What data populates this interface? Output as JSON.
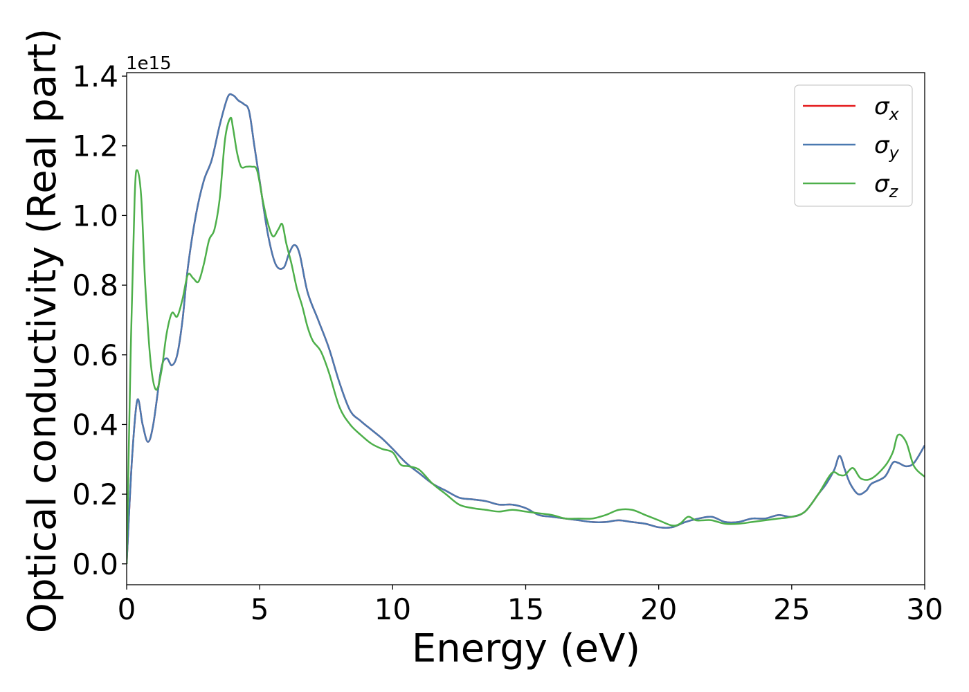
{
  "chart_data": {
    "type": "line",
    "title": "",
    "xlabel": "Energy (eV)",
    "ylabel": "Optical conductivity (Real part)",
    "y_offset_label": "1e15",
    "y_scale_factor": 1000000000000000.0,
    "xlim": [
      0,
      30
    ],
    "ylim": [
      -0.06,
      1.41
    ],
    "xticks": [
      0,
      5,
      10,
      15,
      20,
      25,
      30
    ],
    "xtick_labels": [
      "0",
      "5",
      "10",
      "15",
      "20",
      "25",
      "30"
    ],
    "yticks": [
      0.0,
      0.2,
      0.4,
      0.6,
      0.8,
      1.0,
      1.2,
      1.4
    ],
    "ytick_labels": [
      "0.0",
      "0.2",
      "0.4",
      "0.6",
      "0.8",
      "1.0",
      "1.2",
      "1.4"
    ],
    "grid": false,
    "legend_position": "top-right",
    "series": [
      {
        "name": "σx",
        "legend_base": "σ",
        "legend_sub": "x",
        "color": "#e41a1c",
        "x": [
          0,
          0.2,
          0.4,
          0.6,
          0.8,
          1.0,
          1.3,
          1.5,
          1.7,
          1.9,
          2.1,
          2.3,
          2.6,
          2.9,
          3.2,
          3.5,
          3.8,
          4.0,
          4.2,
          4.4,
          4.6,
          4.8,
          5.0,
          5.3,
          5.6,
          5.9,
          6.1,
          6.3,
          6.5,
          6.8,
          7.2,
          7.6,
          8.0,
          8.4,
          8.8,
          9.2,
          9.6,
          10.0,
          10.5,
          11.0,
          11.5,
          12.0,
          12.5,
          13.0,
          13.5,
          14.0,
          14.5,
          15.0,
          15.5,
          16.0,
          16.5,
          17.0,
          17.5,
          18.0,
          18.5,
          19.0,
          19.5,
          20.0,
          20.5,
          21.0,
          21.5,
          22.0,
          22.5,
          23.0,
          23.5,
          24.0,
          24.5,
          25.0,
          25.5,
          26.0,
          26.3,
          26.6,
          26.8,
          27.0,
          27.2,
          27.5,
          27.8,
          28.0,
          28.5,
          28.8,
          29.0,
          29.3,
          29.6,
          30.0
        ],
        "values": [
          0.0,
          0.3,
          0.47,
          0.4,
          0.35,
          0.4,
          0.56,
          0.59,
          0.57,
          0.6,
          0.7,
          0.85,
          1.0,
          1.1,
          1.16,
          1.26,
          1.34,
          1.345,
          1.33,
          1.32,
          1.3,
          1.2,
          1.1,
          0.95,
          0.86,
          0.85,
          0.89,
          0.915,
          0.89,
          0.78,
          0.7,
          0.62,
          0.52,
          0.44,
          0.41,
          0.385,
          0.36,
          0.33,
          0.29,
          0.26,
          0.23,
          0.21,
          0.19,
          0.185,
          0.18,
          0.17,
          0.17,
          0.16,
          0.14,
          0.135,
          0.13,
          0.125,
          0.12,
          0.12,
          0.125,
          0.12,
          0.115,
          0.105,
          0.105,
          0.12,
          0.13,
          0.135,
          0.12,
          0.12,
          0.13,
          0.13,
          0.14,
          0.135,
          0.15,
          0.2,
          0.23,
          0.27,
          0.31,
          0.27,
          0.23,
          0.2,
          0.21,
          0.23,
          0.25,
          0.29,
          0.29,
          0.28,
          0.29,
          0.34
        ]
      },
      {
        "name": "σy",
        "legend_base": "σ",
        "legend_sub": "y",
        "color": "#4a79b0",
        "x": [
          0,
          0.2,
          0.4,
          0.6,
          0.8,
          1.0,
          1.3,
          1.5,
          1.7,
          1.9,
          2.1,
          2.3,
          2.6,
          2.9,
          3.2,
          3.5,
          3.8,
          4.0,
          4.2,
          4.4,
          4.6,
          4.8,
          5.0,
          5.3,
          5.6,
          5.9,
          6.1,
          6.3,
          6.5,
          6.8,
          7.2,
          7.6,
          8.0,
          8.4,
          8.8,
          9.2,
          9.6,
          10.0,
          10.5,
          11.0,
          11.5,
          12.0,
          12.5,
          13.0,
          13.5,
          14.0,
          14.5,
          15.0,
          15.5,
          16.0,
          16.5,
          17.0,
          17.5,
          18.0,
          18.5,
          19.0,
          19.5,
          20.0,
          20.5,
          21.0,
          21.5,
          22.0,
          22.5,
          23.0,
          23.5,
          24.0,
          24.5,
          25.0,
          25.5,
          26.0,
          26.3,
          26.6,
          26.8,
          27.0,
          27.2,
          27.5,
          27.8,
          28.0,
          28.5,
          28.8,
          29.0,
          29.3,
          29.6,
          30.0
        ],
        "values": [
          0.0,
          0.3,
          0.47,
          0.4,
          0.35,
          0.4,
          0.56,
          0.59,
          0.57,
          0.6,
          0.7,
          0.85,
          1.0,
          1.1,
          1.16,
          1.26,
          1.34,
          1.345,
          1.33,
          1.32,
          1.3,
          1.2,
          1.1,
          0.95,
          0.86,
          0.85,
          0.89,
          0.915,
          0.89,
          0.78,
          0.7,
          0.62,
          0.52,
          0.44,
          0.41,
          0.385,
          0.36,
          0.33,
          0.29,
          0.26,
          0.23,
          0.21,
          0.19,
          0.185,
          0.18,
          0.17,
          0.17,
          0.16,
          0.14,
          0.135,
          0.13,
          0.125,
          0.12,
          0.12,
          0.125,
          0.12,
          0.115,
          0.105,
          0.105,
          0.12,
          0.13,
          0.135,
          0.12,
          0.12,
          0.13,
          0.13,
          0.14,
          0.135,
          0.15,
          0.2,
          0.23,
          0.27,
          0.31,
          0.27,
          0.23,
          0.2,
          0.21,
          0.23,
          0.25,
          0.29,
          0.29,
          0.28,
          0.29,
          0.34
        ]
      },
      {
        "name": "σz",
        "legend_base": "σ",
        "legend_sub": "z",
        "color": "#4daf4a",
        "x": [
          0,
          0.15,
          0.3,
          0.4,
          0.55,
          0.7,
          0.9,
          1.1,
          1.3,
          1.5,
          1.7,
          1.9,
          2.1,
          2.3,
          2.5,
          2.7,
          2.9,
          3.1,
          3.3,
          3.5,
          3.7,
          3.9,
          4.0,
          4.15,
          4.3,
          4.5,
          4.7,
          4.9,
          5.1,
          5.3,
          5.5,
          5.7,
          5.85,
          6.0,
          6.2,
          6.4,
          6.6,
          6.8,
          7.0,
          7.3,
          7.6,
          8.0,
          8.4,
          8.8,
          9.2,
          9.6,
          10.0,
          10.3,
          10.6,
          11.0,
          11.5,
          12.0,
          12.5,
          13.0,
          13.5,
          14.0,
          14.5,
          15.0,
          15.5,
          16.0,
          16.5,
          17.0,
          17.5,
          18.0,
          18.5,
          19.0,
          19.5,
          20.0,
          20.5,
          20.8,
          21.1,
          21.4,
          21.7,
          22.0,
          22.5,
          23.0,
          23.5,
          24.0,
          24.5,
          25.0,
          25.5,
          26.0,
          26.5,
          26.8,
          27.0,
          27.3,
          27.6,
          28.0,
          28.5,
          28.8,
          29.0,
          29.3,
          29.6,
          30.0
        ],
        "values": [
          0.0,
          0.6,
          1.05,
          1.13,
          1.05,
          0.8,
          0.58,
          0.5,
          0.55,
          0.66,
          0.72,
          0.71,
          0.76,
          0.83,
          0.82,
          0.81,
          0.86,
          0.93,
          0.96,
          1.05,
          1.22,
          1.28,
          1.25,
          1.18,
          1.14,
          1.14,
          1.14,
          1.13,
          1.05,
          0.98,
          0.94,
          0.96,
          0.975,
          0.92,
          0.86,
          0.79,
          0.74,
          0.68,
          0.64,
          0.61,
          0.55,
          0.45,
          0.4,
          0.37,
          0.345,
          0.33,
          0.32,
          0.285,
          0.28,
          0.27,
          0.23,
          0.2,
          0.17,
          0.16,
          0.155,
          0.15,
          0.155,
          0.15,
          0.145,
          0.14,
          0.13,
          0.13,
          0.13,
          0.14,
          0.155,
          0.155,
          0.14,
          0.125,
          0.11,
          0.115,
          0.135,
          0.125,
          0.125,
          0.125,
          0.115,
          0.115,
          0.12,
          0.125,
          0.13,
          0.135,
          0.15,
          0.2,
          0.26,
          0.255,
          0.255,
          0.275,
          0.245,
          0.245,
          0.28,
          0.32,
          0.37,
          0.35,
          0.28,
          0.25
        ]
      }
    ]
  }
}
